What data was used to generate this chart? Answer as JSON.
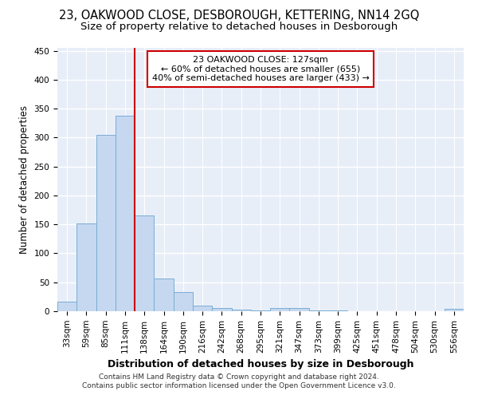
{
  "title": "23, OAKWOOD CLOSE, DESBOROUGH, KETTERING, NN14 2GQ",
  "subtitle": "Size of property relative to detached houses in Desborough",
  "xlabel": "Distribution of detached houses by size in Desborough",
  "ylabel": "Number of detached properties",
  "footnote1": "Contains HM Land Registry data © Crown copyright and database right 2024.",
  "footnote2": "Contains public sector information licensed under the Open Government Licence v3.0.",
  "categories": [
    "33sqm",
    "59sqm",
    "85sqm",
    "111sqm",
    "138sqm",
    "164sqm",
    "190sqm",
    "216sqm",
    "242sqm",
    "268sqm",
    "295sqm",
    "321sqm",
    "347sqm",
    "373sqm",
    "399sqm",
    "425sqm",
    "451sqm",
    "478sqm",
    "504sqm",
    "530sqm",
    "556sqm"
  ],
  "values": [
    17,
    152,
    305,
    338,
    165,
    57,
    33,
    9,
    6,
    3,
    1,
    5,
    5,
    2,
    1,
    0,
    0,
    0,
    0,
    0,
    4
  ],
  "bar_color": "#c5d8f0",
  "bar_edge_color": "#7aadd4",
  "property_line_color": "#cc0000",
  "property_line_x": 3.5,
  "property_label": "23 OAKWOOD CLOSE: 127sqm",
  "annotation_line1": "← 60% of detached houses are smaller (655)",
  "annotation_line2": "40% of semi-detached houses are larger (433) →",
  "annotation_box_facecolor": "#ffffff",
  "annotation_box_edgecolor": "#cc0000",
  "ylim": [
    0,
    455
  ],
  "yticks": [
    0,
    50,
    100,
    150,
    200,
    250,
    300,
    350,
    400,
    450
  ],
  "fig_facecolor": "#ffffff",
  "ax_facecolor": "#e8eef8",
  "grid_color": "#ffffff",
  "title_fontsize": 10.5,
  "subtitle_fontsize": 9.5,
  "xlabel_fontsize": 9,
  "ylabel_fontsize": 8.5,
  "tick_fontsize": 7.5,
  "footnote_fontsize": 6.5,
  "annot_fontsize": 8
}
